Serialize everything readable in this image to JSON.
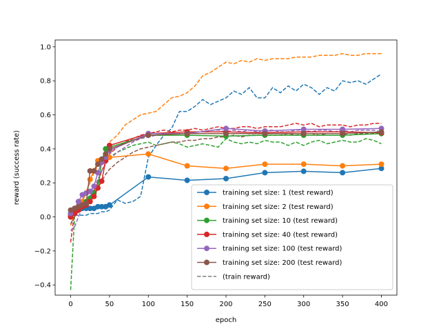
{
  "chart_data": {
    "type": "line",
    "title": "",
    "xlabel": "epoch",
    "ylabel": "reward (success rate)",
    "xlim": [
      -20,
      420
    ],
    "ylim": [
      -0.46,
      1.04
    ],
    "xticks": [
      0,
      50,
      100,
      150,
      200,
      250,
      300,
      350,
      400
    ],
    "yticks": [
      -0.4,
      -0.2,
      0.0,
      0.2,
      0.4,
      0.6,
      0.8,
      1.0
    ],
    "legend_position": "lower-right",
    "grid": false,
    "test_x": [
      0,
      5,
      10,
      15,
      20,
      25,
      30,
      35,
      40,
      45,
      50,
      100,
      150,
      200,
      250,
      300,
      350,
      400
    ],
    "train_x": [
      0,
      5,
      10,
      15,
      20,
      25,
      30,
      35,
      40,
      45,
      50,
      60,
      70,
      80,
      90,
      100,
      110,
      120,
      130,
      140,
      150,
      160,
      170,
      180,
      190,
      200,
      210,
      220,
      230,
      240,
      250,
      260,
      270,
      280,
      290,
      300,
      310,
      320,
      330,
      340,
      350,
      360,
      370,
      380,
      390,
      400
    ],
    "series": [
      {
        "name": "training set size: 1 (test reward)",
        "color": "#1f77b4",
        "test": [
          0.02,
          0.04,
          0.04,
          0.05,
          0.05,
          0.05,
          0.05,
          0.06,
          0.06,
          0.06,
          0.07,
          0.235,
          0.215,
          0.225,
          0.26,
          0.268,
          0.26,
          0.285
        ],
        "train": [
          -0.05,
          0.01,
          0.01,
          0.01,
          0.01,
          0.02,
          0.02,
          0.02,
          0.03,
          0.03,
          0.04,
          0.1,
          0.08,
          0.09,
          0.12,
          0.35,
          0.42,
          0.48,
          0.52,
          0.62,
          0.62,
          0.65,
          0.69,
          0.66,
          0.68,
          0.7,
          0.74,
          0.72,
          0.76,
          0.7,
          0.7,
          0.76,
          0.73,
          0.77,
          0.74,
          0.78,
          0.76,
          0.72,
          0.76,
          0.74,
          0.8,
          0.79,
          0.8,
          0.78,
          0.81,
          0.84
        ]
      },
      {
        "name": "training set size: 2 (test reward)",
        "color": "#ff7f0e",
        "test": [
          0.0,
          0.02,
          0.05,
          0.09,
          0.14,
          0.22,
          0.27,
          0.33,
          0.33,
          0.34,
          0.35,
          0.37,
          0.3,
          0.285,
          0.31,
          0.31,
          0.3,
          0.31
        ],
        "train": [
          -0.05,
          0.02,
          0.06,
          0.1,
          0.15,
          0.2,
          0.26,
          0.3,
          0.33,
          0.38,
          0.44,
          0.48,
          0.54,
          0.57,
          0.6,
          0.61,
          0.62,
          0.66,
          0.7,
          0.71,
          0.73,
          0.77,
          0.83,
          0.85,
          0.88,
          0.91,
          0.9,
          0.92,
          0.91,
          0.93,
          0.92,
          0.93,
          0.93,
          0.93,
          0.94,
          0.94,
          0.94,
          0.95,
          0.95,
          0.95,
          0.96,
          0.95,
          0.95,
          0.96,
          0.96,
          0.96
        ]
      },
      {
        "name": "training set size: 10 (test reward)",
        "color": "#2ca02c",
        "test": [
          0.01,
          0.03,
          0.05,
          0.07,
          0.09,
          0.11,
          0.14,
          0.17,
          0.33,
          0.4,
          0.41,
          0.48,
          0.48,
          0.475,
          0.48,
          0.48,
          0.48,
          0.49
        ],
        "train": [
          -0.43,
          0.0,
          0.05,
          0.07,
          0.09,
          0.12,
          0.16,
          0.21,
          0.27,
          0.31,
          0.35,
          0.38,
          0.4,
          0.42,
          0.43,
          0.44,
          0.42,
          0.43,
          0.44,
          0.43,
          0.41,
          0.42,
          0.43,
          0.42,
          0.41,
          0.46,
          0.44,
          0.43,
          0.44,
          0.43,
          0.45,
          0.44,
          0.44,
          0.42,
          0.44,
          0.42,
          0.44,
          0.45,
          0.43,
          0.44,
          0.45,
          0.44,
          0.44,
          0.46,
          0.45,
          0.43
        ]
      },
      {
        "name": "training set size: 40 (test reward)",
        "color": "#d62728",
        "test": [
          0.0,
          0.02,
          0.04,
          0.06,
          0.07,
          0.09,
          0.12,
          0.17,
          0.21,
          0.33,
          0.42,
          0.49,
          0.5,
          0.5,
          0.495,
          0.5,
          0.5,
          0.495
        ],
        "train": [
          -0.15,
          0.03,
          0.06,
          0.08,
          0.1,
          0.12,
          0.15,
          0.2,
          0.27,
          0.32,
          0.37,
          0.41,
          0.44,
          0.46,
          0.48,
          0.49,
          0.5,
          0.51,
          0.5,
          0.51,
          0.51,
          0.52,
          0.51,
          0.52,
          0.53,
          0.52,
          0.52,
          0.53,
          0.53,
          0.52,
          0.53,
          0.53,
          0.53,
          0.54,
          0.55,
          0.54,
          0.55,
          0.53,
          0.54,
          0.54,
          0.54,
          0.53,
          0.54,
          0.54,
          0.55,
          0.55
        ]
      },
      {
        "name": "training set size: 100 (test reward)",
        "color": "#9467bd",
        "test": [
          0.02,
          0.05,
          0.09,
          0.13,
          0.14,
          0.15,
          0.18,
          0.26,
          0.32,
          0.35,
          0.39,
          0.49,
          0.49,
          0.52,
          0.505,
          0.515,
          0.515,
          0.52
        ],
        "train": [
          -0.08,
          -0.06,
          0.0,
          0.05,
          0.08,
          0.12,
          0.17,
          0.22,
          0.27,
          0.31,
          0.34,
          0.38,
          0.41,
          0.44,
          0.46,
          0.47,
          0.48,
          0.48,
          0.49,
          0.49,
          0.49,
          0.5,
          0.5,
          0.51,
          0.51,
          0.5,
          0.51,
          0.5,
          0.51,
          0.5,
          0.51,
          0.51,
          0.5,
          0.5,
          0.51,
          0.51,
          0.5,
          0.51,
          0.51,
          0.5,
          0.51,
          0.5,
          0.51,
          0.51,
          0.51,
          0.5
        ]
      },
      {
        "name": "training set size: 200 (test reward)",
        "color": "#8c564b",
        "test": [
          0.04,
          0.05,
          0.06,
          0.07,
          0.08,
          0.27,
          0.27,
          0.31,
          0.34,
          0.37,
          0.4,
          0.48,
          0.49,
          0.49,
          0.49,
          0.49,
          0.49,
          0.5
        ],
        "train": [
          -0.04,
          0.0,
          0.03,
          0.05,
          0.07,
          0.1,
          0.14,
          0.18,
          0.21,
          0.25,
          0.28,
          0.32,
          0.35,
          0.38,
          0.4,
          0.41,
          0.42,
          0.43,
          0.44,
          0.44,
          0.45,
          0.45,
          0.46,
          0.46,
          0.47,
          0.47,
          0.48,
          0.47,
          0.48,
          0.48,
          0.48,
          0.48,
          0.48,
          0.49,
          0.48,
          0.49,
          0.49,
          0.48,
          0.49,
          0.49,
          0.49,
          0.48,
          0.49,
          0.49,
          0.49,
          0.49
        ]
      }
    ],
    "train_legend_label": "(train reward)",
    "train_legend_color": "#7f7f7f"
  }
}
